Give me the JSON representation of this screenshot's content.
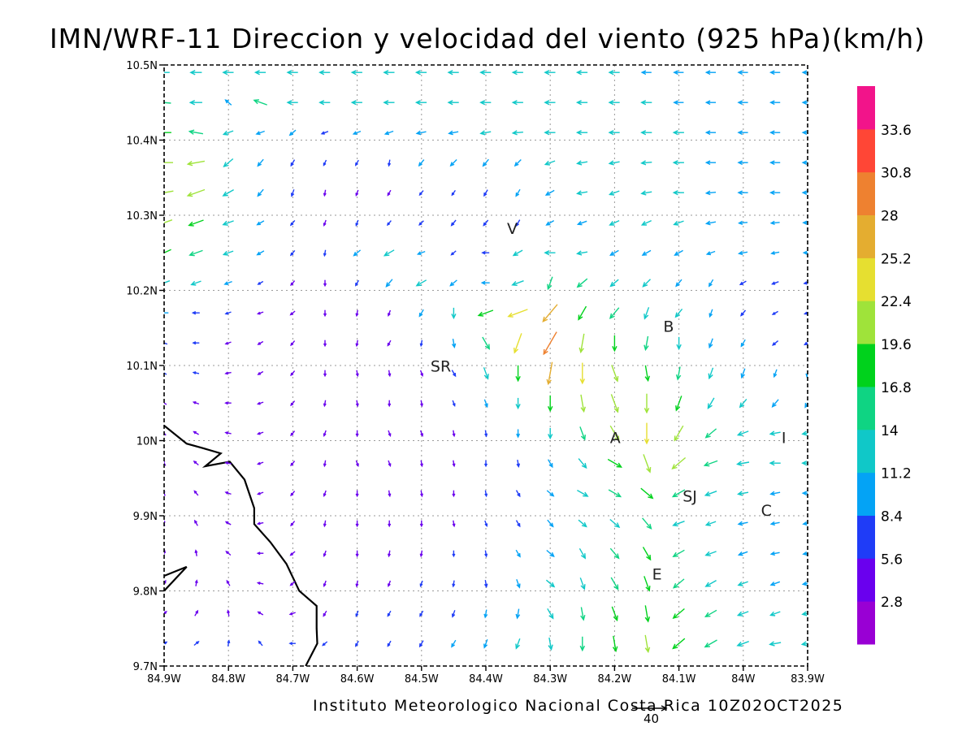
{
  "title": "IMN/WRF-11 Direccion y velocidad del viento (925 hPa)(km/h)",
  "footer": "Instituto Meteorologico Nacional Costa Rica 10Z02OCT2025",
  "reference_vector": {
    "value": "40"
  },
  "colors": {
    "frame": "#000000",
    "grid": "#9a9a9a",
    "coastline": "#000000"
  },
  "chart_data": {
    "type": "wind-vector-map",
    "xaxis": {
      "range": [
        -84.9,
        -83.9
      ],
      "ticks": [
        -84.9,
        -84.8,
        -84.7,
        -84.6,
        -84.5,
        -84.4,
        -84.3,
        -84.2,
        -84.1,
        -84.0,
        -83.9
      ],
      "tick_labels": [
        "84.9W",
        "84.8W",
        "84.7W",
        "84.6W",
        "84.5W",
        "84.4W",
        "84.3W",
        "84.2W",
        "84.1W",
        "84W",
        "83.9W"
      ]
    },
    "yaxis": {
      "range": [
        9.7,
        10.5
      ],
      "ticks": [
        9.7,
        9.8,
        9.9,
        10.0,
        10.1,
        10.2,
        10.3,
        10.4,
        10.5
      ],
      "tick_labels": [
        "9.7N",
        "9.8N",
        "9.9N",
        "10N",
        "10.1N",
        "10.2N",
        "10.3N",
        "10.4N",
        "10.5N"
      ]
    },
    "grid": true,
    "colorbar": {
      "labels": [
        "33.6",
        "30.8",
        "28",
        "25.2",
        "22.4",
        "19.6",
        "16.8",
        "14",
        "11.2",
        "8.4",
        "5.6",
        "2.8"
      ],
      "bins": [
        {
          "max": 2.8,
          "color": "#9900d4"
        },
        {
          "max": 5.6,
          "color": "#6a00ee"
        },
        {
          "max": 8.4,
          "color": "#1f3cf7"
        },
        {
          "max": 11.2,
          "color": "#04a3f5"
        },
        {
          "max": 14,
          "color": "#10c8c8"
        },
        {
          "max": 16.8,
          "color": "#0fd483"
        },
        {
          "max": 19.6,
          "color": "#00d21c"
        },
        {
          "max": 22.4,
          "color": "#9fe33a"
        },
        {
          "max": 25.2,
          "color": "#e6df30"
        },
        {
          "max": 28,
          "color": "#e4ad30"
        },
        {
          "max": 30.8,
          "color": "#ee8130"
        },
        {
          "max": 33.6,
          "color": "#ff4636"
        },
        {
          "max": 40,
          "color": "#f2148a"
        }
      ]
    },
    "station_labels": [
      {
        "text": "V",
        "lon": -84.359,
        "lat": 10.275
      },
      {
        "text": "B",
        "lon": -84.116,
        "lat": 10.145
      },
      {
        "text": "SR",
        "lon": -84.47,
        "lat": 10.092
      },
      {
        "text": "A",
        "lon": -84.199,
        "lat": 9.997
      },
      {
        "text": "I",
        "lon": -83.937,
        "lat": 9.997
      },
      {
        "text": "SJ",
        "lon": -84.083,
        "lat": 9.919
      },
      {
        "text": "C",
        "lon": -83.964,
        "lat": 9.9
      },
      {
        "text": "E",
        "lon": -84.134,
        "lat": 9.815
      }
    ],
    "coastline": [
      [
        [
          -84.9,
          10.02
        ],
        [
          -84.865,
          9.996
        ],
        [
          -84.84,
          9.99
        ],
        [
          -84.812,
          9.983
        ],
        [
          -84.836,
          9.966
        ],
        [
          -84.798,
          9.972
        ],
        [
          -84.775,
          9.948
        ],
        [
          -84.76,
          9.91
        ],
        [
          -84.76,
          9.889
        ],
        [
          -84.735,
          9.865
        ],
        [
          -84.71,
          9.836
        ],
        [
          -84.69,
          9.8
        ],
        [
          -84.663,
          9.78
        ],
        [
          -84.663,
          9.75
        ],
        [
          -84.662,
          9.73
        ],
        [
          -84.68,
          9.7
        ]
      ],
      [
        [
          -84.9,
          9.82
        ],
        [
          -84.865,
          9.832
        ],
        [
          -84.9,
          9.8
        ]
      ]
    ],
    "wind_field": {
      "note": "Wind arrows: direction (deg, meteorological 'toward', 0=east, CCW) and speed (km/h) at 925 hPa, sampled on a regular grid.",
      "lon_start": -84.9,
      "lon_step": 0.05,
      "lat_start": 10.49,
      "lat_step": -0.04,
      "cols": 21,
      "rows": 20,
      "dir": [
        [
          180,
          180,
          180,
          180,
          180,
          180,
          180,
          180,
          180,
          180,
          180,
          180,
          180,
          180,
          180,
          180,
          180,
          180,
          180,
          180,
          180
        ],
        [
          175,
          180,
          140,
          160,
          180,
          180,
          180,
          180,
          180,
          180,
          180,
          180,
          180,
          180,
          180,
          180,
          180,
          180,
          180,
          180,
          180
        ],
        [
          180,
          170,
          200,
          200,
          220,
          200,
          200,
          200,
          190,
          190,
          190,
          185,
          180,
          180,
          180,
          180,
          180,
          180,
          180,
          180,
          180
        ],
        [
          180,
          190,
          220,
          230,
          240,
          245,
          240,
          260,
          230,
          225,
          230,
          225,
          200,
          190,
          190,
          185,
          180,
          180,
          180,
          180,
          180
        ],
        [
          190,
          200,
          210,
          230,
          250,
          260,
          250,
          240,
          230,
          235,
          240,
          240,
          210,
          190,
          200,
          190,
          180,
          185,
          180,
          180,
          180
        ],
        [
          200,
          200,
          200,
          210,
          230,
          250,
          250,
          230,
          225,
          230,
          230,
          240,
          210,
          200,
          205,
          205,
          200,
          190,
          185,
          185,
          180
        ],
        [
          205,
          200,
          200,
          210,
          230,
          260,
          220,
          210,
          200,
          220,
          180,
          210,
          180,
          190,
          210,
          210,
          210,
          200,
          190,
          190,
          180
        ],
        [
          200,
          200,
          200,
          210,
          230,
          270,
          240,
          230,
          210,
          220,
          180,
          200,
          250,
          220,
          220,
          225,
          230,
          240,
          210,
          200,
          190
        ],
        [
          180,
          180,
          200,
          200,
          220,
          270,
          260,
          250,
          240,
          270,
          200,
          200,
          230,
          240,
          230,
          250,
          230,
          250,
          230,
          210,
          200
        ],
        [
          160,
          180,
          200,
          210,
          230,
          270,
          260,
          240,
          260,
          280,
          300,
          250,
          240,
          260,
          270,
          260,
          270,
          250,
          240,
          220,
          210
        ],
        [
          150,
          170,
          190,
          210,
          230,
          270,
          280,
          280,
          290,
          300,
          290,
          270,
          260,
          270,
          290,
          280,
          260,
          250,
          250,
          250,
          260
        ],
        [
          150,
          160,
          180,
          200,
          230,
          260,
          280,
          270,
          280,
          290,
          290,
          270,
          270,
          280,
          290,
          270,
          250,
          240,
          230,
          230,
          240
        ],
        [
          130,
          150,
          170,
          200,
          230,
          250,
          270,
          290,
          290,
          280,
          280,
          270,
          270,
          290,
          300,
          270,
          240,
          220,
          200,
          190,
          190
        ],
        [
          120,
          140,
          170,
          200,
          230,
          260,
          290,
          290,
          280,
          280,
          270,
          280,
          300,
          310,
          330,
          290,
          220,
          200,
          190,
          180,
          180
        ],
        [
          110,
          130,
          160,
          200,
          230,
          250,
          270,
          280,
          280,
          270,
          280,
          300,
          320,
          330,
          330,
          320,
          210,
          200,
          190,
          190,
          180
        ],
        [
          100,
          120,
          150,
          190,
          230,
          260,
          270,
          270,
          270,
          280,
          290,
          300,
          310,
          320,
          320,
          310,
          200,
          200,
          190,
          190,
          190
        ],
        [
          80,
          100,
          140,
          180,
          220,
          250,
          270,
          260,
          260,
          270,
          280,
          300,
          320,
          300,
          310,
          300,
          210,
          200,
          200,
          190,
          190
        ],
        [
          60,
          80,
          120,
          170,
          220,
          250,
          260,
          250,
          250,
          260,
          280,
          290,
          320,
          290,
          300,
          290,
          220,
          210,
          200,
          200,
          190
        ],
        [
          40,
          60,
          100,
          150,
          200,
          240,
          250,
          240,
          240,
          250,
          260,
          260,
          300,
          280,
          290,
          280,
          220,
          210,
          200,
          200,
          190
        ],
        [
          30,
          40,
          80,
          130,
          180,
          220,
          240,
          240,
          240,
          240,
          250,
          250,
          280,
          270,
          280,
          280,
          220,
          210,
          200,
          190,
          190
        ]
      ],
      "speed": [
        [
          13,
          13,
          12,
          12,
          12,
          12,
          12,
          12,
          12,
          12,
          12,
          12,
          12,
          12,
          12,
          11,
          11,
          11,
          11,
          11,
          11
        ],
        [
          16,
          14,
          9,
          16,
          12,
          12,
          12,
          12,
          12,
          12,
          12,
          12,
          12,
          12,
          12,
          12,
          11,
          11,
          11,
          11,
          11
        ],
        [
          17,
          16,
          12,
          10,
          9,
          8,
          9,
          10,
          11,
          11,
          12,
          12,
          12,
          12,
          12,
          12,
          12,
          11,
          11,
          11,
          11
        ],
        [
          21,
          20,
          14,
          10,
          8,
          6,
          6,
          7,
          9,
          10,
          10,
          10,
          12,
          12,
          12,
          12,
          12,
          11,
          11,
          11,
          11
        ],
        [
          22,
          21,
          14,
          10,
          8,
          5,
          4,
          5,
          6,
          6,
          8,
          9,
          11,
          12,
          12,
          12,
          12,
          11,
          11,
          11,
          11
        ],
        [
          20,
          18,
          13,
          9,
          7,
          4,
          6,
          6,
          7,
          8,
          8,
          8,
          10,
          11,
          12,
          12,
          12,
          11,
          10,
          10,
          10
        ],
        [
          18,
          16,
          12,
          9,
          7,
          6,
          10,
          13,
          9,
          7,
          8,
          12,
          12,
          12,
          11,
          11,
          11,
          10,
          10,
          9,
          9
        ],
        [
          14,
          12,
          9,
          6,
          5,
          5,
          7,
          11,
          13,
          10,
          9,
          14,
          15,
          15,
          12,
          12,
          10,
          9,
          8,
          8,
          8
        ],
        [
          10,
          8,
          6,
          5,
          4,
          3,
          3,
          5,
          9,
          12,
          18,
          24,
          26,
          18,
          16,
          14,
          12,
          9,
          8,
          7,
          7
        ],
        [
          8,
          7,
          5,
          4,
          4,
          3,
          3,
          4,
          6,
          10,
          16,
          24,
          30,
          22,
          18,
          16,
          14,
          11,
          9,
          8,
          8
        ],
        [
          6,
          6,
          5,
          4,
          3,
          3,
          3,
          4,
          5,
          8,
          14,
          18,
          26,
          24,
          20,
          18,
          15,
          13,
          11,
          9,
          9
        ],
        [
          5,
          5,
          4,
          4,
          3,
          3,
          3,
          3,
          4,
          6,
          9,
          12,
          18,
          20,
          22,
          22,
          18,
          14,
          12,
          11,
          11
        ],
        [
          4,
          4,
          4,
          4,
          4,
          3,
          3,
          3,
          4,
          5,
          7,
          9,
          12,
          16,
          20,
          24,
          20,
          16,
          13,
          12,
          12
        ],
        [
          4,
          4,
          4,
          4,
          4,
          4,
          3,
          3,
          4,
          5,
          6,
          8,
          10,
          14,
          18,
          22,
          20,
          16,
          14,
          12,
          12
        ],
        [
          4,
          4,
          4,
          4,
          4,
          4,
          4,
          4,
          4,
          5,
          6,
          8,
          10,
          14,
          16,
          18,
          16,
          14,
          12,
          11,
          11
        ],
        [
          4,
          4,
          4,
          4,
          4,
          4,
          4,
          4,
          4,
          5,
          6,
          8,
          10,
          12,
          14,
          16,
          14,
          12,
          11,
          10,
          10
        ],
        [
          4,
          4,
          4,
          4,
          4,
          5,
          5,
          5,
          5,
          6,
          7,
          9,
          11,
          13,
          15,
          17,
          15,
          13,
          11,
          10,
          10
        ],
        [
          5,
          5,
          5,
          5,
          5,
          5,
          5,
          5,
          6,
          7,
          8,
          10,
          12,
          14,
          16,
          18,
          16,
          14,
          12,
          11,
          11
        ],
        [
          5,
          5,
          5,
          5,
          5,
          5,
          6,
          6,
          7,
          8,
          9,
          11,
          13,
          15,
          17,
          19,
          17,
          15,
          13,
          12,
          12
        ],
        [
          6,
          6,
          6,
          6,
          6,
          6,
          6,
          7,
          8,
          9,
          10,
          12,
          14,
          16,
          18,
          20,
          18,
          16,
          14,
          13,
          13
        ]
      ]
    }
  }
}
